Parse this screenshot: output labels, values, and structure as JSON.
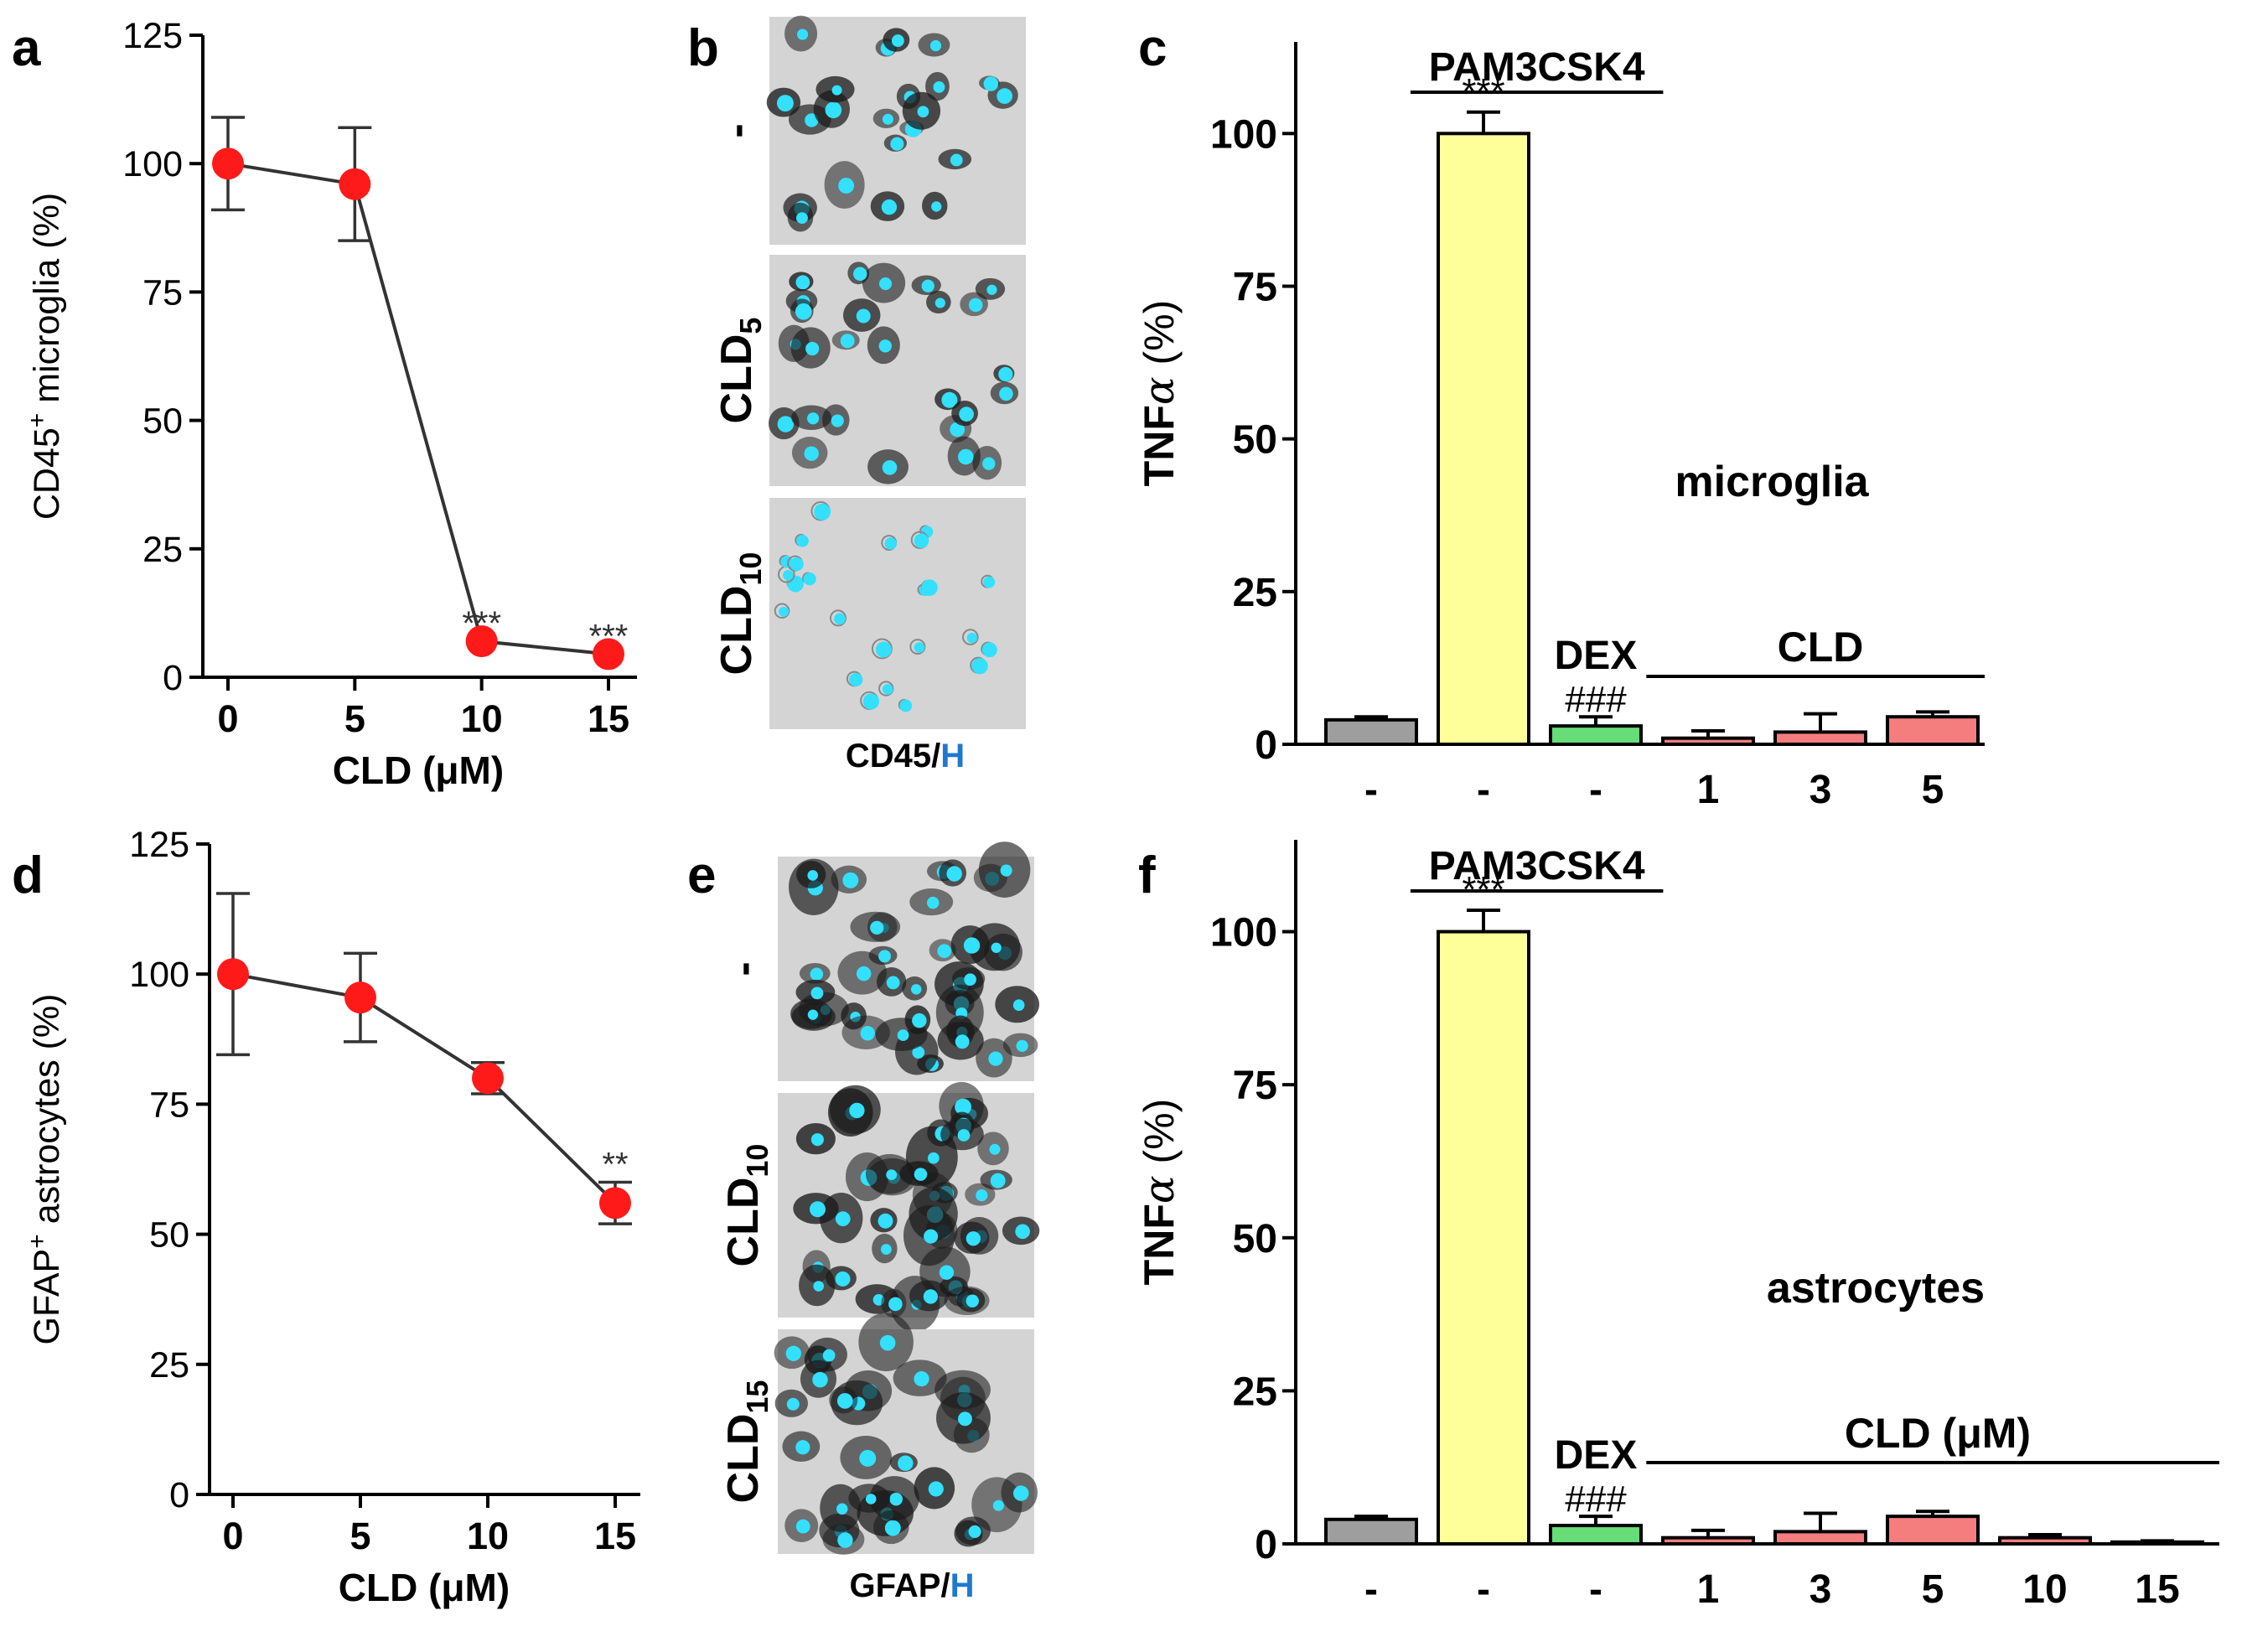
{
  "panels": {
    "a": {
      "letter": "a"
    },
    "b": {
      "letter": "b",
      "rows": [
        {
          "label": "-"
        },
        {
          "label": "CLD",
          "sub": "5"
        },
        {
          "label": "CLD",
          "sub": "10"
        }
      ],
      "caption_main": "CD45/",
      "caption_h": "H"
    },
    "c": {
      "letter": "c"
    },
    "d": {
      "letter": "d"
    },
    "e": {
      "letter": "e",
      "rows": [
        {
          "label": "-"
        },
        {
          "label": "CLD",
          "sub": "10"
        },
        {
          "label": "CLD",
          "sub": "15"
        }
      ],
      "caption_main": "GFAP/",
      "caption_h": "H"
    },
    "f": {
      "letter": "f"
    }
  },
  "chart_data": [
    {
      "id": "a",
      "type": "line",
      "x": [
        0,
        5,
        10,
        15
      ],
      "values": [
        100,
        96,
        7,
        4.5
      ],
      "errors": [
        9,
        11,
        0,
        0
      ],
      "significance": [
        "",
        "",
        "***",
        "***"
      ],
      "xlabel": "CLD (μM)",
      "ylabel_pre": "CD45",
      "ylabel_sup": "+",
      "ylabel_post": " microglia (%)",
      "ylim": [
        0,
        125
      ],
      "yticks": [
        0,
        25,
        50,
        75,
        100,
        125
      ],
      "xticks": [
        "0",
        "5",
        "10",
        "15"
      ],
      "color": "#ff1a1a"
    },
    {
      "id": "d",
      "type": "line",
      "x": [
        0,
        5,
        10,
        15
      ],
      "values": [
        100,
        95.5,
        80,
        56
      ],
      "errors": [
        15.5,
        8.5,
        3,
        4
      ],
      "significance": [
        "",
        "",
        "",
        "**"
      ],
      "xlabel": "CLD (μM)",
      "ylabel_pre": "GFAP",
      "ylabel_sup": "+",
      "ylabel_post": " astrocytes (%)",
      "ylim": [
        0,
        125
      ],
      "yticks": [
        0,
        25,
        50,
        75,
        100,
        125
      ],
      "xticks": [
        "0",
        "5",
        "10",
        "15"
      ],
      "color": "#ff1a1a"
    },
    {
      "id": "c",
      "type": "bar",
      "categories": [
        "-",
        "-",
        "-",
        "1",
        "3",
        "5"
      ],
      "values": [
        4,
        100,
        3,
        1,
        2,
        4.5
      ],
      "errors": [
        0.5,
        3.5,
        1.5,
        1.2,
        3,
        0.8
      ],
      "colors": [
        "#9e9e9e",
        "#ffff99",
        "#66dd77",
        "#f47e7e",
        "#f47e7e",
        "#f47e7e"
      ],
      "bar_marks": [
        "",
        "***",
        "###",
        "",
        "",
        ""
      ],
      "group_labels": {
        "pam": "PAM3CSK4",
        "dex": "DEX",
        "cld": "CLD"
      },
      "cell_label": "microglia",
      "ylabel_pre": "TNF",
      "ylabel_greek": "α",
      "ylabel_post": " (%)",
      "ylim": [
        0,
        115
      ],
      "yticks": [
        0,
        25,
        50,
        75,
        100
      ]
    },
    {
      "id": "f",
      "type": "bar",
      "categories": [
        "-",
        "-",
        "-",
        "1",
        "3",
        "5",
        "10",
        "15"
      ],
      "values": [
        4,
        100,
        3,
        1,
        2,
        4.5,
        1,
        0.3
      ],
      "errors": [
        0.5,
        3.5,
        1.5,
        1.2,
        3,
        0.8,
        0.5,
        0.2
      ],
      "colors": [
        "#9e9e9e",
        "#ffff99",
        "#66dd77",
        "#f47e7e",
        "#f47e7e",
        "#f47e7e",
        "#f47e7e",
        "#f47e7e"
      ],
      "bar_marks": [
        "",
        "***",
        "###",
        "",
        "",
        "",
        "",
        ""
      ],
      "group_labels": {
        "pam": "PAM3CSK4",
        "dex": "DEX",
        "cld": "CLD (μM)"
      },
      "cell_label": "astrocytes",
      "ylabel_pre": "TNF",
      "ylabel_greek": "α",
      "ylabel_post": " (%)",
      "ylim": [
        0,
        115
      ],
      "yticks": [
        0,
        25,
        50,
        75,
        100
      ]
    }
  ],
  "micrograph_colors": {
    "background": "#d4d4d4",
    "cell": "#1a1a1a",
    "nucleus": "#33e0ff"
  }
}
